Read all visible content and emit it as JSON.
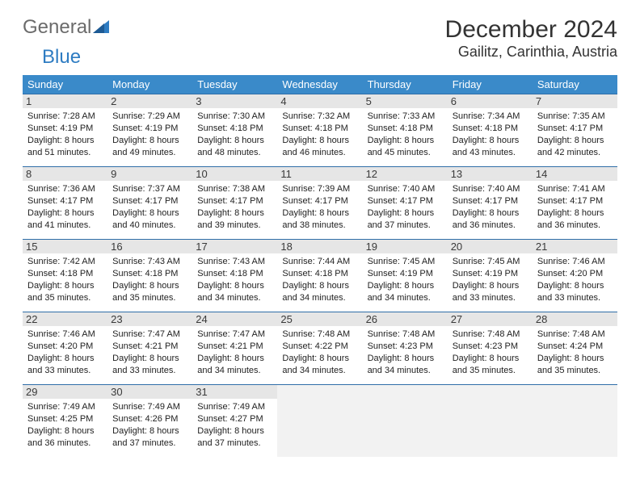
{
  "logo": {
    "text_gray": "General",
    "text_blue": "Blue"
  },
  "title": "December 2024",
  "location": "Gailitz, Carinthia, Austria",
  "header_color": "#3a8ac9",
  "border_color": "#2f6ea8",
  "day_headers": [
    "Sunday",
    "Monday",
    "Tuesday",
    "Wednesday",
    "Thursday",
    "Friday",
    "Saturday"
  ],
  "weeks": [
    [
      {
        "n": "1",
        "sunrise": "7:28 AM",
        "sunset": "4:19 PM",
        "daylight": "8 hours and 51 minutes."
      },
      {
        "n": "2",
        "sunrise": "7:29 AM",
        "sunset": "4:19 PM",
        "daylight": "8 hours and 49 minutes."
      },
      {
        "n": "3",
        "sunrise": "7:30 AM",
        "sunset": "4:18 PM",
        "daylight": "8 hours and 48 minutes."
      },
      {
        "n": "4",
        "sunrise": "7:32 AM",
        "sunset": "4:18 PM",
        "daylight": "8 hours and 46 minutes."
      },
      {
        "n": "5",
        "sunrise": "7:33 AM",
        "sunset": "4:18 PM",
        "daylight": "8 hours and 45 minutes."
      },
      {
        "n": "6",
        "sunrise": "7:34 AM",
        "sunset": "4:18 PM",
        "daylight": "8 hours and 43 minutes."
      },
      {
        "n": "7",
        "sunrise": "7:35 AM",
        "sunset": "4:17 PM",
        "daylight": "8 hours and 42 minutes."
      }
    ],
    [
      {
        "n": "8",
        "sunrise": "7:36 AM",
        "sunset": "4:17 PM",
        "daylight": "8 hours and 41 minutes."
      },
      {
        "n": "9",
        "sunrise": "7:37 AM",
        "sunset": "4:17 PM",
        "daylight": "8 hours and 40 minutes."
      },
      {
        "n": "10",
        "sunrise": "7:38 AM",
        "sunset": "4:17 PM",
        "daylight": "8 hours and 39 minutes."
      },
      {
        "n": "11",
        "sunrise": "7:39 AM",
        "sunset": "4:17 PM",
        "daylight": "8 hours and 38 minutes."
      },
      {
        "n": "12",
        "sunrise": "7:40 AM",
        "sunset": "4:17 PM",
        "daylight": "8 hours and 37 minutes."
      },
      {
        "n": "13",
        "sunrise": "7:40 AM",
        "sunset": "4:17 PM",
        "daylight": "8 hours and 36 minutes."
      },
      {
        "n": "14",
        "sunrise": "7:41 AM",
        "sunset": "4:17 PM",
        "daylight": "8 hours and 36 minutes."
      }
    ],
    [
      {
        "n": "15",
        "sunrise": "7:42 AM",
        "sunset": "4:18 PM",
        "daylight": "8 hours and 35 minutes."
      },
      {
        "n": "16",
        "sunrise": "7:43 AM",
        "sunset": "4:18 PM",
        "daylight": "8 hours and 35 minutes."
      },
      {
        "n": "17",
        "sunrise": "7:43 AM",
        "sunset": "4:18 PM",
        "daylight": "8 hours and 34 minutes."
      },
      {
        "n": "18",
        "sunrise": "7:44 AM",
        "sunset": "4:18 PM",
        "daylight": "8 hours and 34 minutes."
      },
      {
        "n": "19",
        "sunrise": "7:45 AM",
        "sunset": "4:19 PM",
        "daylight": "8 hours and 34 minutes."
      },
      {
        "n": "20",
        "sunrise": "7:45 AM",
        "sunset": "4:19 PM",
        "daylight": "8 hours and 33 minutes."
      },
      {
        "n": "21",
        "sunrise": "7:46 AM",
        "sunset": "4:20 PM",
        "daylight": "8 hours and 33 minutes."
      }
    ],
    [
      {
        "n": "22",
        "sunrise": "7:46 AM",
        "sunset": "4:20 PM",
        "daylight": "8 hours and 33 minutes."
      },
      {
        "n": "23",
        "sunrise": "7:47 AM",
        "sunset": "4:21 PM",
        "daylight": "8 hours and 33 minutes."
      },
      {
        "n": "24",
        "sunrise": "7:47 AM",
        "sunset": "4:21 PM",
        "daylight": "8 hours and 34 minutes."
      },
      {
        "n": "25",
        "sunrise": "7:48 AM",
        "sunset": "4:22 PM",
        "daylight": "8 hours and 34 minutes."
      },
      {
        "n": "26",
        "sunrise": "7:48 AM",
        "sunset": "4:23 PM",
        "daylight": "8 hours and 34 minutes."
      },
      {
        "n": "27",
        "sunrise": "7:48 AM",
        "sunset": "4:23 PM",
        "daylight": "8 hours and 35 minutes."
      },
      {
        "n": "28",
        "sunrise": "7:48 AM",
        "sunset": "4:24 PM",
        "daylight": "8 hours and 35 minutes."
      }
    ],
    [
      {
        "n": "29",
        "sunrise": "7:49 AM",
        "sunset": "4:25 PM",
        "daylight": "8 hours and 36 minutes."
      },
      {
        "n": "30",
        "sunrise": "7:49 AM",
        "sunset": "4:26 PM",
        "daylight": "8 hours and 37 minutes."
      },
      {
        "n": "31",
        "sunrise": "7:49 AM",
        "sunset": "4:27 PM",
        "daylight": "8 hours and 37 minutes."
      },
      null,
      null,
      null,
      null
    ]
  ],
  "labels": {
    "sunrise": "Sunrise: ",
    "sunset": "Sunset: ",
    "daylight": "Daylight: "
  }
}
